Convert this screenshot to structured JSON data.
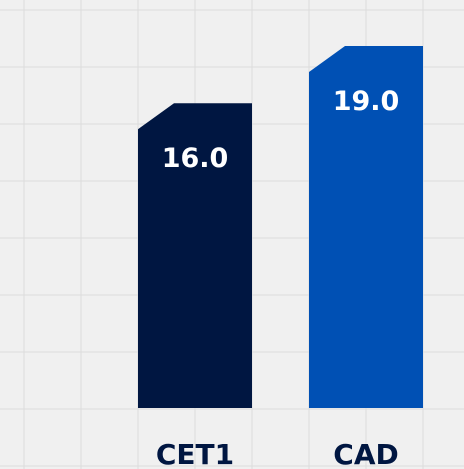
{
  "chart_data": {
    "type": "bar",
    "categories": [
      "CET1",
      "CAD"
    ],
    "values": [
      16,
      19
    ],
    "value_labels": [
      "16.0",
      "19.0"
    ],
    "colors": [
      "#001641",
      "#0050b4"
    ],
    "ylim": [
      0,
      20
    ],
    "grid": true
  }
}
